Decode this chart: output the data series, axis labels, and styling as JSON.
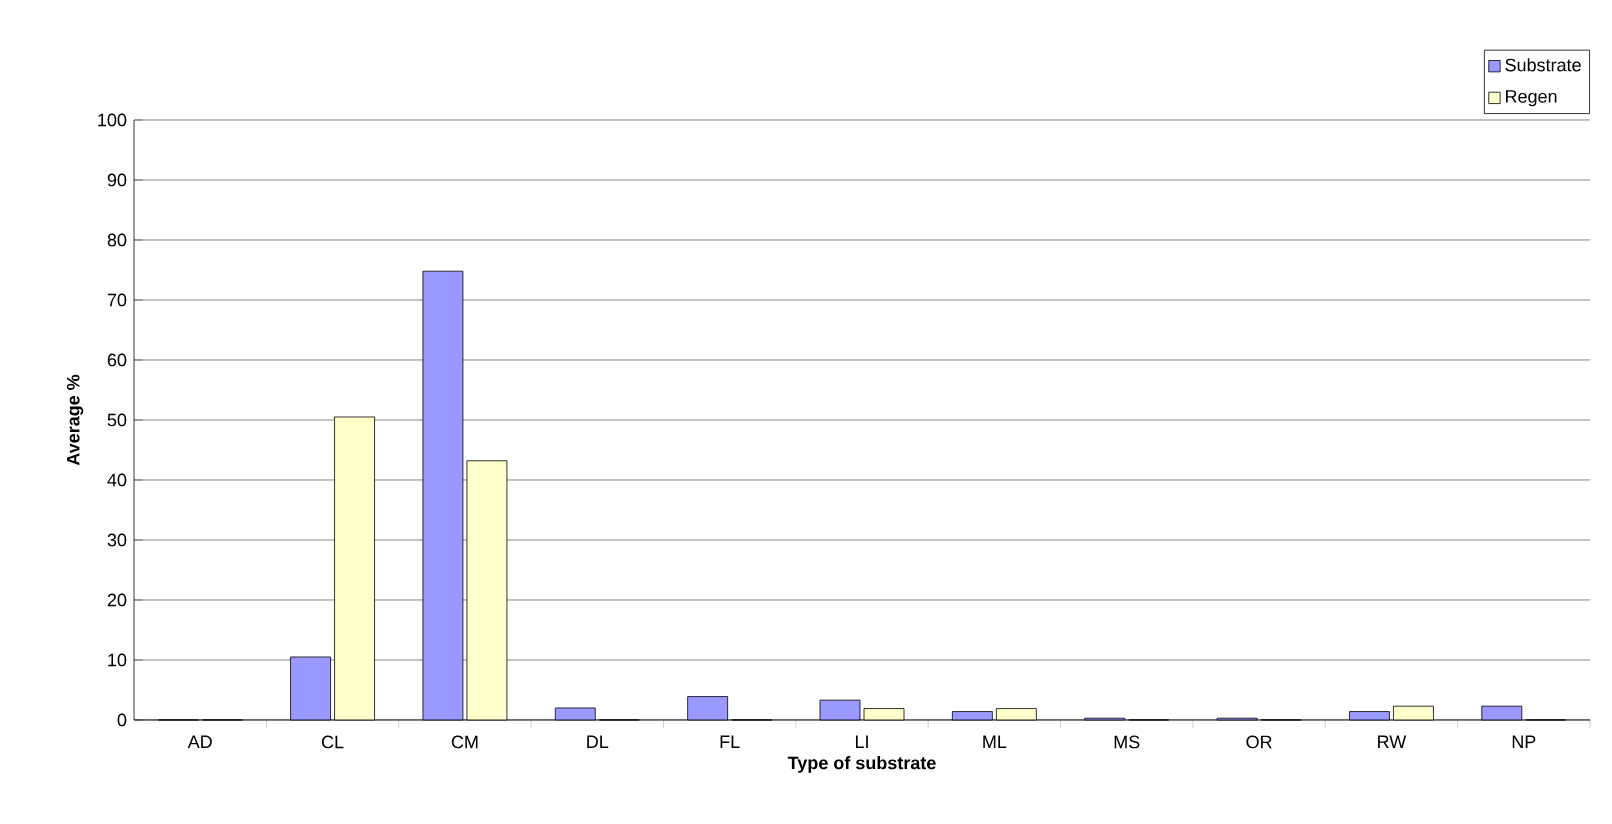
{
  "chart_data": {
    "type": "bar",
    "xlabel": "Type of substrate",
    "ylabel": "Average %",
    "categories": [
      "AD",
      "CL",
      "CM",
      "DL",
      "FL",
      "LI",
      "ML",
      "MS",
      "OR",
      "RW",
      "NP"
    ],
    "series": [
      {
        "name": "Substrate",
        "color": "#9999ff",
        "values": [
          0,
          10.5,
          74.8,
          2,
          3.9,
          3.3,
          1.4,
          0.3,
          0.3,
          1.4,
          2.3
        ]
      },
      {
        "name": "Regen",
        "color": "#ffffcc",
        "values": [
          0,
          50.5,
          43.2,
          0,
          0,
          1.9,
          1.9,
          0,
          0,
          2.3,
          0
        ]
      }
    ],
    "ylim": [
      0,
      100
    ],
    "yticks": [
      0,
      10,
      20,
      30,
      40,
      50,
      60,
      70,
      80,
      90,
      100
    ],
    "grid": "y",
    "legend": "top right"
  }
}
